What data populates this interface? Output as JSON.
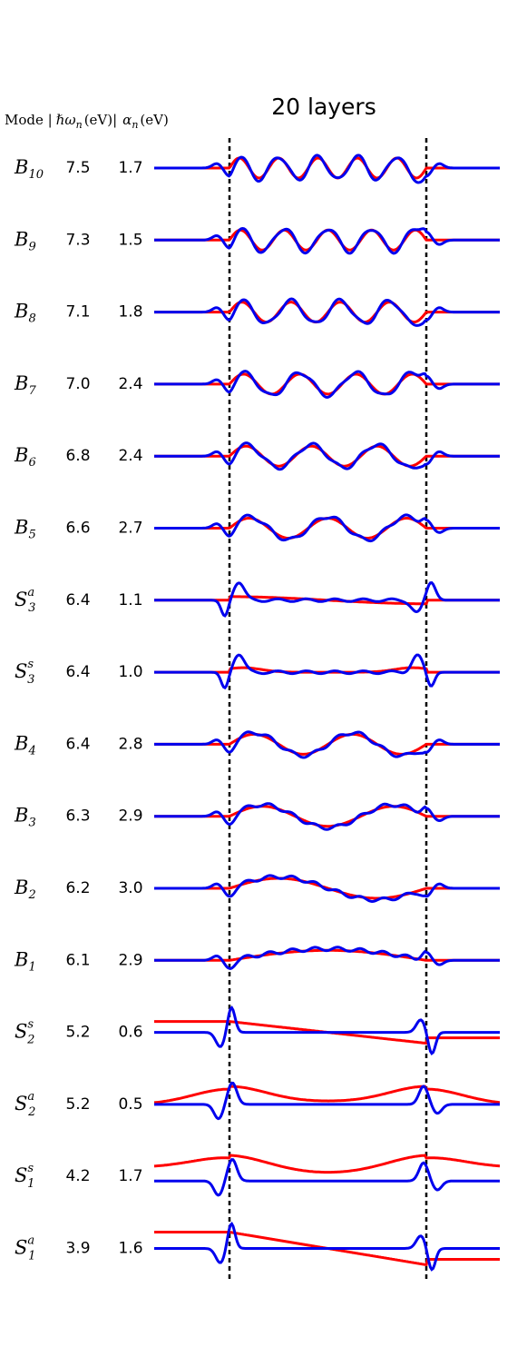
{
  "title": "20 layers",
  "header": {
    "mode": "Mode |",
    "omega": "ℏω",
    "omega_sub": "n",
    "omega_unit": "(eV)|",
    "alpha": "α",
    "alpha_sub": "n",
    "alpha_unit": "(eV)"
  },
  "rows": [
    {
      "mode": {
        "base": "B",
        "sub": "10"
      },
      "energy": "7.5",
      "alpha": "1.7"
    },
    {
      "mode": {
        "base": "B",
        "sub": "9"
      },
      "energy": "7.3",
      "alpha": "1.5"
    },
    {
      "mode": {
        "base": "B",
        "sub": "8"
      },
      "energy": "7.1",
      "alpha": "1.8"
    },
    {
      "mode": {
        "base": "B",
        "sub": "7"
      },
      "energy": "7.0",
      "alpha": "2.4"
    },
    {
      "mode": {
        "base": "B",
        "sub": "6"
      },
      "energy": "6.8",
      "alpha": "2.4"
    },
    {
      "mode": {
        "base": "B",
        "sub": "5"
      },
      "energy": "6.6",
      "alpha": "2.7"
    },
    {
      "mode": {
        "base": "S",
        "sub": "3",
        "sup": "a"
      },
      "energy": "6.4",
      "alpha": "1.1"
    },
    {
      "mode": {
        "base": "S",
        "sub": "3",
        "sup": "s"
      },
      "energy": "6.4",
      "alpha": "1.0"
    },
    {
      "mode": {
        "base": "B",
        "sub": "4"
      },
      "energy": "6.4",
      "alpha": "2.8"
    },
    {
      "mode": {
        "base": "B",
        "sub": "3"
      },
      "energy": "6.3",
      "alpha": "2.9"
    },
    {
      "mode": {
        "base": "B",
        "sub": "2"
      },
      "energy": "6.2",
      "alpha": "3.0"
    },
    {
      "mode": {
        "base": "B",
        "sub": "1"
      },
      "energy": "6.1",
      "alpha": "2.9"
    },
    {
      "mode": {
        "base": "S",
        "sub": "2",
        "sup": "s"
      },
      "energy": "5.2",
      "alpha": "0.6"
    },
    {
      "mode": {
        "base": "S",
        "sub": "2",
        "sup": "a"
      },
      "energy": "5.2",
      "alpha": "0.5"
    },
    {
      "mode": {
        "base": "S",
        "sub": "1",
        "sup": "s"
      },
      "energy": "4.2",
      "alpha": "1.7"
    },
    {
      "mode": {
        "base": "S",
        "sub": "1",
        "sup": "a"
      },
      "energy": "3.9",
      "alpha": "1.6"
    }
  ]
}
